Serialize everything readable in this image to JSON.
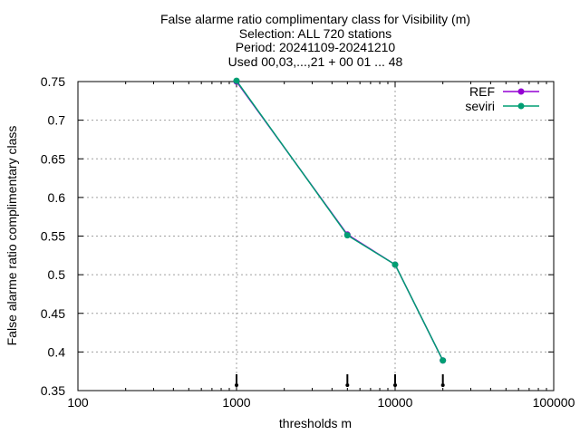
{
  "chart_data": {
    "type": "line",
    "title_lines": [
      "False alarme ratio complimentary class  for Visibility (m)",
      "Selection: ALL    720 stations",
      "Period: 20241109-20241210",
      "Used 00,03,...,21 + 00 01 ... 48"
    ],
    "xlabel": "thresholds m",
    "ylabel": "False alarme ratio complimentary class",
    "x_scale": "log",
    "xlim": [
      100,
      100000
    ],
    "ylim": [
      0.35,
      0.75
    ],
    "x_ticks": [
      100,
      1000,
      10000,
      100000
    ],
    "x_tick_labels": [
      "100",
      "1000",
      "10000",
      "100000"
    ],
    "y_ticks": [
      0.35,
      0.4,
      0.45,
      0.5,
      0.55,
      0.6,
      0.65,
      0.7,
      0.75
    ],
    "y_tick_labels": [
      "0.35",
      "0.4",
      "0.45",
      "0.5",
      "0.55",
      "0.6",
      "0.65",
      "0.7",
      "0.75"
    ],
    "grid": true,
    "legend_position": "top-right",
    "x": [
      1000,
      5000,
      10000,
      20000
    ],
    "series": [
      {
        "name": "REF",
        "color": "#9400d3",
        "values": [
          0.75,
          0.552,
          0.513,
          0.389
        ]
      },
      {
        "name": "seviri",
        "color": "#009e73",
        "values": [
          0.751,
          0.551,
          0.513,
          0.389
        ]
      }
    ],
    "bottom_markers_x": [
      1000,
      5000,
      10000,
      20000
    ]
  }
}
